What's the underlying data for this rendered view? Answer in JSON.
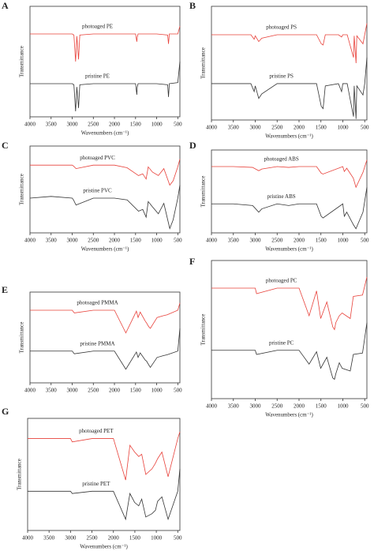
{
  "chart_data": [
    {
      "type": "line",
      "label": "A",
      "xlabel": "Wavenumbers (cm⁻¹)",
      "ylabel": "Transmittance",
      "xlim": [
        4000,
        450
      ],
      "ylim": [
        0,
        100
      ],
      "xticks": [
        4000,
        3500,
        3000,
        2500,
        2000,
        1500,
        1000,
        500
      ],
      "x": [
        4000,
        3500,
        3000,
        2960,
        2920,
        2890,
        2850,
        2820,
        2500,
        2000,
        1500,
        1470,
        1460,
        1440,
        1000,
        740,
        720,
        700,
        500,
        450
      ],
      "series": [
        {
          "name": "photoaged PE",
          "color": "#e8413a",
          "values": [
            75,
            75,
            75,
            74,
            50,
            73,
            52,
            74,
            75,
            75,
            75,
            68,
            72,
            75,
            75,
            74,
            66,
            75,
            75,
            82
          ]
        },
        {
          "name": "pristine PE",
          "color": "#333333",
          "values": [
            30,
            30,
            30,
            29,
            5,
            27,
            8,
            29,
            30,
            30,
            30,
            20,
            27,
            30,
            30,
            29,
            18,
            30,
            31,
            50
          ]
        }
      ]
    },
    {
      "type": "line",
      "label": "B",
      "xlabel": "Wavenumbers (cm⁻¹)",
      "ylabel": "Transmittance",
      "xlim": [
        4000,
        450
      ],
      "ylim": [
        0,
        100
      ],
      "xticks": [
        4000,
        3500,
        3000,
        2500,
        2000,
        1500,
        1000,
        500
      ],
      "x": [
        4000,
        3500,
        3100,
        3025,
        3000,
        2920,
        2850,
        2500,
        2000,
        1600,
        1492,
        1450,
        1400,
        1100,
        1028,
        1000,
        900,
        756,
        740,
        698,
        680,
        540,
        500,
        450
      ],
      "series": [
        {
          "name": "photoaged PS",
          "color": "#e8413a",
          "values": [
            75,
            75,
            75,
            71,
            74,
            69,
            72,
            75,
            75,
            75,
            67,
            66,
            75,
            75,
            73,
            75,
            75,
            55,
            74,
            50,
            74,
            67,
            75,
            85
          ]
        },
        {
          "name": "pristine PS",
          "color": "#333333",
          "values": [
            32,
            32,
            32,
            25,
            30,
            19,
            23,
            32,
            32,
            32,
            12,
            10,
            30,
            32,
            25,
            32,
            32,
            3,
            30,
            1,
            30,
            22,
            32,
            55
          ]
        }
      ]
    },
    {
      "type": "line",
      "label": "C",
      "xlabel": "Wavenumbers (cm⁻¹)",
      "ylabel": "Transmittance",
      "xlim": [
        4000,
        450
      ],
      "ylim": [
        0,
        100
      ],
      "xticks": [
        4000,
        3500,
        3000,
        2500,
        2000,
        1500,
        1000,
        500
      ],
      "x": [
        4000,
        3500,
        3000,
        2970,
        2910,
        2500,
        2000,
        1700,
        1430,
        1330,
        1250,
        1200,
        1100,
        960,
        830,
        690,
        610,
        500,
        450
      ],
      "series": [
        {
          "name": "photoaged PVC",
          "color": "#e8413a",
          "values": [
            78,
            78,
            78,
            77,
            74,
            78,
            78,
            75,
            66,
            68,
            62,
            76,
            70,
            66,
            74,
            55,
            60,
            76,
            85
          ]
        },
        {
          "name": "pristine PVC",
          "color": "#333333",
          "values": [
            40,
            42,
            40,
            38,
            32,
            40,
            40,
            38,
            25,
            27,
            18,
            36,
            30,
            22,
            34,
            5,
            15,
            40,
            55
          ]
        }
      ]
    },
    {
      "type": "line",
      "label": "D",
      "xlabel": "Wavenumbers (cm⁻¹)",
      "ylabel": "Transmittance",
      "xlim": [
        4000,
        450
      ],
      "ylim": [
        0,
        100
      ],
      "xticks": [
        4000,
        3500,
        3000,
        2500,
        2000,
        1500,
        1000,
        500
      ],
      "x": [
        4000,
        3500,
        3060,
        3025,
        2920,
        2850,
        2500,
        2237,
        2000,
        1600,
        1493,
        1452,
        1000,
        966,
        910,
        760,
        700,
        540,
        450
      ],
      "series": [
        {
          "name": "photoaged ABS",
          "color": "#e8413a",
          "values": [
            80,
            80,
            79,
            78,
            75,
            77,
            80,
            79,
            80,
            80,
            72,
            71,
            80,
            74,
            78,
            66,
            55,
            73,
            88
          ]
        },
        {
          "name": "pristine ABS",
          "color": "#333333",
          "values": [
            35,
            35,
            33,
            31,
            25,
            29,
            35,
            33,
            35,
            35,
            20,
            18,
            35,
            20,
            25,
            10,
            5,
            25,
            55
          ]
        }
      ]
    },
    {
      "type": "line",
      "label": "E",
      "ylabel": "Transmittance",
      "xlim": [
        4000,
        450
      ],
      "ylim": [
        0,
        100
      ],
      "xticks": [
        4000,
        3500,
        3000,
        2500,
        2000,
        1500,
        1000,
        500
      ],
      "x": [
        4000,
        3500,
        3000,
        2950,
        2500,
        2000,
        1730,
        1480,
        1440,
        1390,
        1270,
        1240,
        1190,
        1150,
        990,
        840,
        750,
        500,
        450
      ],
      "series": [
        {
          "name": "photoaged PMMA",
          "color": "#e8413a",
          "values": [
            80,
            80,
            80,
            77,
            80,
            80,
            55,
            79,
            72,
            78,
            68,
            66,
            62,
            60,
            72,
            74,
            75,
            80,
            88
          ]
        },
        {
          "name": "pristine PMMA",
          "color": "#333333",
          "values": [
            35,
            35,
            35,
            32,
            35,
            35,
            15,
            34,
            28,
            33,
            25,
            24,
            20,
            17,
            28,
            30,
            31,
            35,
            60
          ]
        }
      ]
    },
    {
      "type": "line",
      "label": "F",
      "xlabel": "Wavenumbers (cm⁻¹)",
      "ylabel": "Transmittance",
      "xlim": [
        4000,
        450
      ],
      "ylim": [
        0,
        100
      ],
      "xticks": [
        4000,
        3500,
        3000,
        2500,
        2000,
        1500,
        1000,
        500
      ],
      "x": [
        4000,
        3500,
        3000,
        2970,
        2500,
        2000,
        1770,
        1600,
        1505,
        1365,
        1230,
        1190,
        1160,
        1080,
        1015,
        830,
        760,
        550,
        450
      ],
      "series": [
        {
          "name": "photoaged PC",
          "color": "#e8413a",
          "values": [
            80,
            80,
            80,
            76,
            80,
            80,
            60,
            78,
            58,
            70,
            52,
            50,
            55,
            60,
            62,
            58,
            74,
            75,
            88
          ]
        },
        {
          "name": "pristine PC",
          "color": "#333333",
          "values": [
            35,
            35,
            35,
            32,
            35,
            35,
            25,
            34,
            22,
            30,
            15,
            14,
            18,
            26,
            22,
            20,
            32,
            33,
            55
          ]
        }
      ]
    },
    {
      "type": "line",
      "label": "G",
      "xlabel": "Wavenumbers (cm⁻¹)",
      "ylabel": "Transmittance",
      "xlim": [
        4000,
        450
      ],
      "ylim": [
        0,
        100
      ],
      "xticks": [
        4000,
        3500,
        3000,
        2500,
        2000,
        1500,
        1000,
        500
      ],
      "x": [
        4000,
        3500,
        3000,
        2960,
        2500,
        2000,
        1715,
        1615,
        1505,
        1410,
        1340,
        1245,
        1100,
        1020,
        970,
        870,
        725,
        500,
        450
      ],
      "series": [
        {
          "name": "photoaged PET",
          "color": "#e8413a",
          "values": [
            82,
            82,
            82,
            79,
            82,
            82,
            45,
            76,
            70,
            66,
            68,
            50,
            55,
            60,
            64,
            70,
            48,
            82,
            88
          ]
        },
        {
          "name": "pristine PET",
          "color": "#333333",
          "values": [
            35,
            35,
            35,
            33,
            35,
            35,
            10,
            33,
            25,
            22,
            28,
            12,
            15,
            18,
            26,
            30,
            10,
            35,
            55
          ]
        }
      ]
    }
  ]
}
